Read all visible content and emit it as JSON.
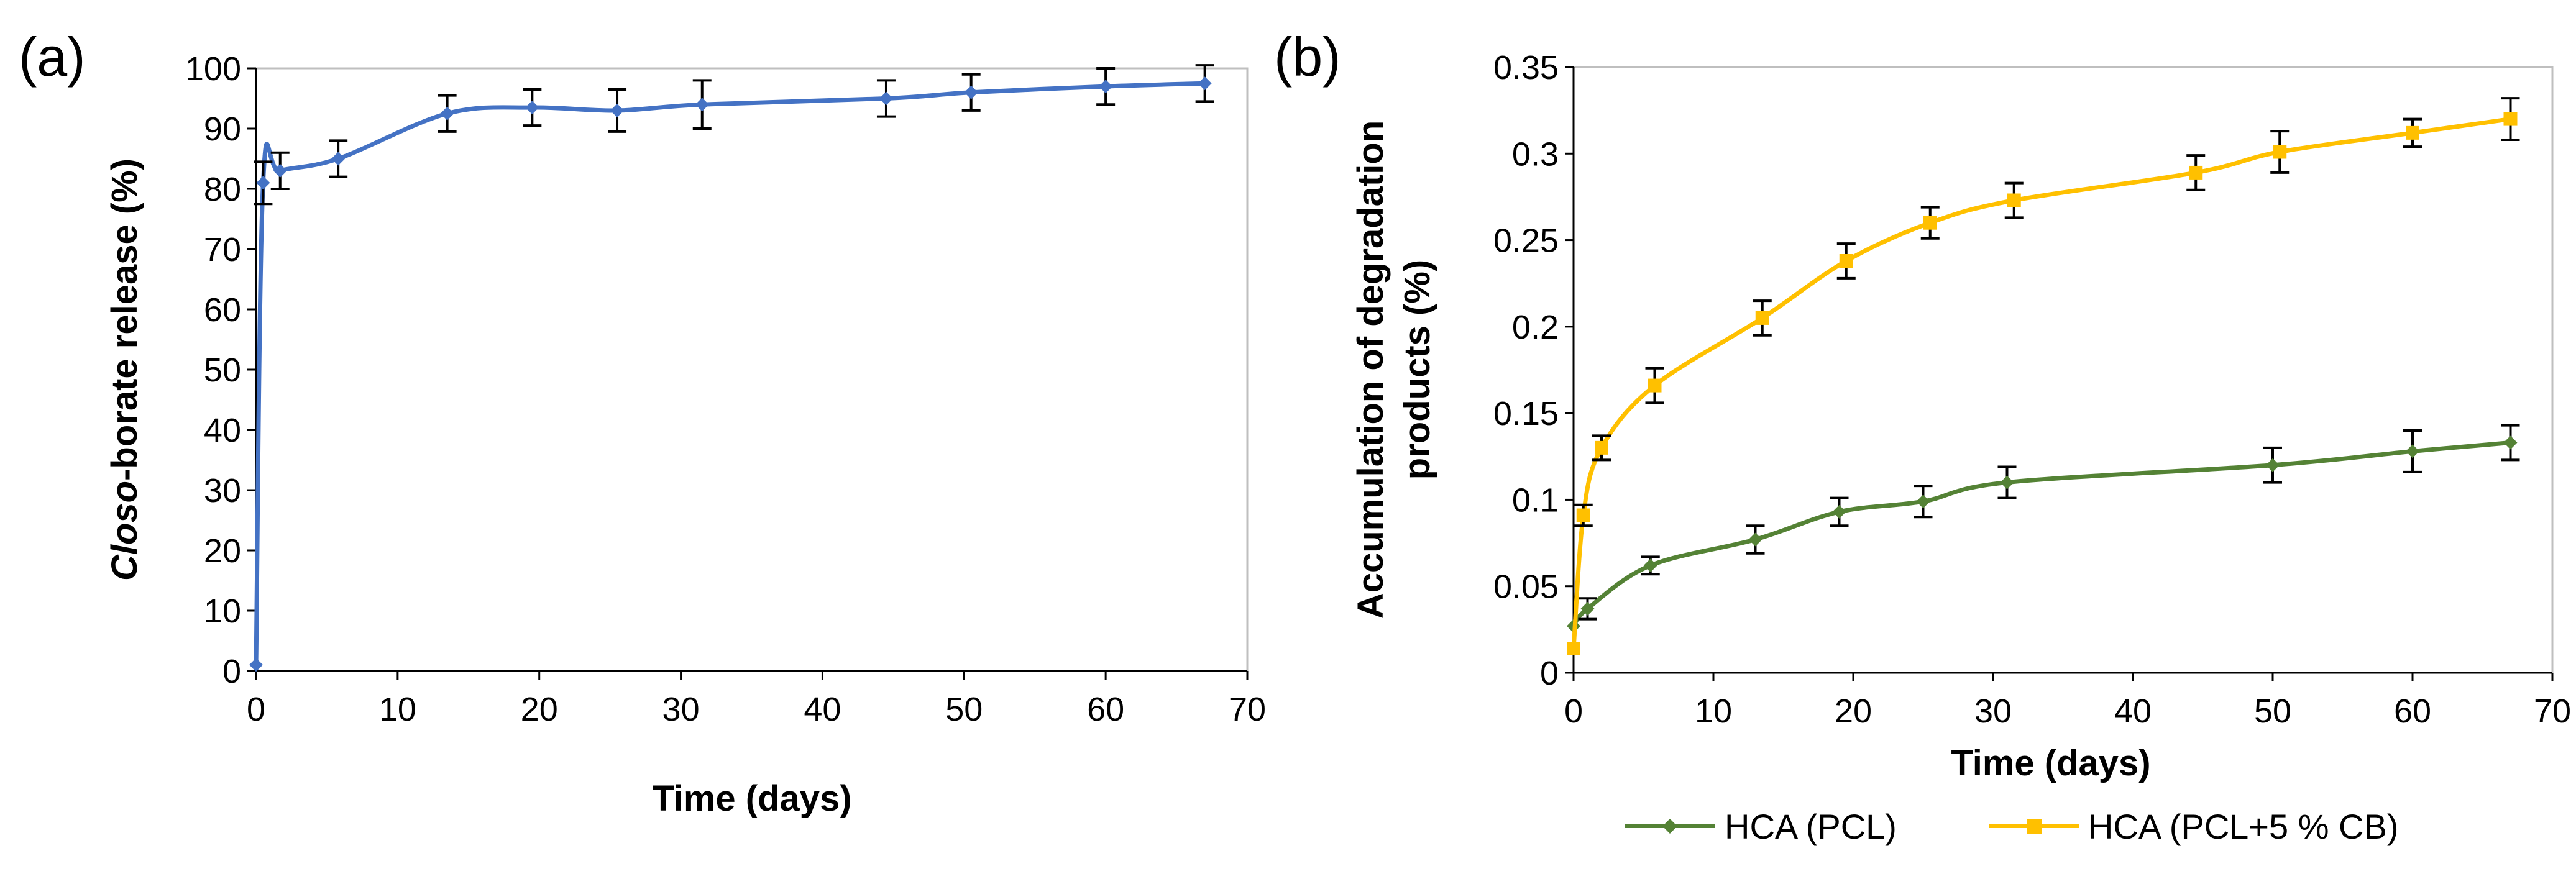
{
  "panel_labels": [
    "(a)",
    "(b)"
  ],
  "colors": {
    "blue": "#4472C4",
    "green": "#548235",
    "yellow": "#FFC000",
    "axis": "#000000"
  },
  "chart_data": [
    {
      "id": "a",
      "type": "line",
      "title": "",
      "xlabel": "Time (days)",
      "ylabel_parts": [
        "Closo",
        "-borate release (%)"
      ],
      "xlim": [
        0,
        70
      ],
      "ylim": [
        0,
        100
      ],
      "xticks": [
        0,
        10,
        20,
        30,
        40,
        50,
        60,
        70
      ],
      "yticks": [
        0,
        10,
        20,
        30,
        40,
        50,
        60,
        70,
        80,
        90,
        100
      ],
      "ytick_labels": [
        "0",
        "10",
        "20",
        "30",
        "40",
        "50",
        "60",
        "70",
        "80",
        "90",
        "100"
      ],
      "series": [
        {
          "name": "Closo-borate release",
          "color": "#4472C4",
          "marker": "diamond",
          "x": [
            0,
            0.5,
            1.7,
            5.8,
            13.5,
            19.5,
            25.5,
            31.5,
            44.5,
            50.5,
            60,
            67
          ],
          "y": [
            1,
            81,
            83,
            85,
            92.5,
            93.5,
            93,
            94,
            95,
            96,
            97,
            97.5
          ],
          "err": [
            0,
            3.5,
            3,
            3,
            3,
            3,
            3.5,
            4,
            3,
            3,
            3,
            3
          ]
        }
      ]
    },
    {
      "id": "b",
      "type": "line",
      "title": "",
      "xlabel": "Time (days)",
      "ylabel_lines": [
        "Accumulation of degradation",
        "products (%)"
      ],
      "xlim": [
        0,
        70
      ],
      "ylim": [
        0,
        0.35
      ],
      "xticks": [
        0,
        10,
        20,
        30,
        40,
        50,
        60,
        70
      ],
      "yticks": [
        0,
        0.05,
        0.1,
        0.15,
        0.2,
        0.25,
        0.3,
        0.35
      ],
      "ytick_labels": [
        "0",
        "0.05",
        "0.1",
        "0.15",
        "0.2",
        "0.25",
        "0.3",
        "0.35"
      ],
      "legend_position": "bottom",
      "series": [
        {
          "name": "HCA (PCL)",
          "color": "#548235",
          "marker": "diamond",
          "x": [
            0,
            1,
            5.5,
            13,
            19,
            25,
            31,
            50,
            60,
            67
          ],
          "y": [
            0.027,
            0.037,
            0.062,
            0.077,
            0.093,
            0.099,
            0.11,
            0.12,
            0.128,
            0.133
          ],
          "err": [
            0,
            0.006,
            0.005,
            0.008,
            0.008,
            0.009,
            0.009,
            0.01,
            0.012,
            0.01
          ]
        },
        {
          "name": "HCA (PCL+5 % CB)",
          "color": "#FFC000",
          "marker": "square",
          "x": [
            0,
            0.7,
            2,
            5.8,
            13.5,
            19.5,
            25.5,
            31.5,
            44.5,
            50.5,
            60,
            67
          ],
          "y": [
            0.014,
            0.091,
            0.13,
            0.166,
            0.205,
            0.238,
            0.26,
            0.273,
            0.289,
            0.301,
            0.312,
            0.32
          ],
          "err": [
            0,
            0.006,
            0.007,
            0.01,
            0.01,
            0.01,
            0.009,
            0.01,
            0.01,
            0.012,
            0.008,
            0.012
          ]
        }
      ]
    }
  ]
}
